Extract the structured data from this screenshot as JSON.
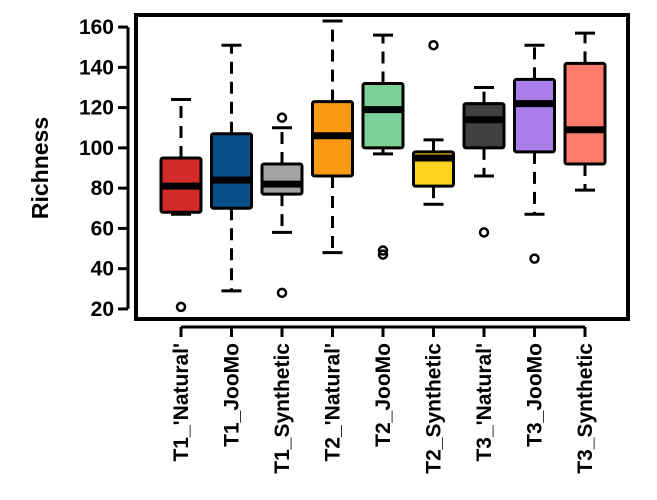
{
  "chart_data": {
    "type": "boxplot",
    "title": "",
    "xlabel": "",
    "ylabel": "Richness",
    "ylim": [
      15,
      166
    ],
    "yticks": [
      20,
      40,
      60,
      80,
      100,
      120,
      140,
      160
    ],
    "grid": false,
    "legend": "none",
    "categories": [
      "T1_'Natural'",
      "T1_JooMo",
      "T1_Synthetic",
      "T2_'Natural'",
      "T2_JooMo",
      "T2_Synthetic",
      "T3_'Natural'",
      "T3_JooMo",
      "T3_Synthetic"
    ],
    "boxes": [
      {
        "category": "T1_'Natural'",
        "color": "#d42a2a",
        "whisker_low": 67,
        "q1": 68,
        "median": 81,
        "q3": 95,
        "whisker_high": 124,
        "outliers": [
          21
        ]
      },
      {
        "category": "T1_JooMo",
        "color": "#0b4f8a",
        "whisker_low": 29,
        "q1": 70,
        "median": 84,
        "q3": 107,
        "whisker_high": 151,
        "outliers": []
      },
      {
        "category": "T1_Synthetic",
        "color": "#a3a3a3",
        "whisker_low": 58,
        "q1": 77,
        "median": 82,
        "q3": 92,
        "whisker_high": 110,
        "outliers": [
          115,
          28
        ]
      },
      {
        "category": "T2_'Natural'",
        "color": "#ff9a14",
        "whisker_low": 48,
        "q1": 86,
        "median": 106,
        "q3": 123,
        "whisker_high": 163,
        "outliers": []
      },
      {
        "category": "T2_JooMo",
        "color": "#7ccf99",
        "whisker_low": 97,
        "q1": 100,
        "median": 119,
        "q3": 132,
        "whisker_high": 156,
        "outliers": [
          49,
          47
        ]
      },
      {
        "category": "T2_Synthetic",
        "color": "#ffd21e",
        "whisker_low": 72,
        "q1": 81,
        "median": 95,
        "q3": 98,
        "whisker_high": 104,
        "outliers": [
          151
        ]
      },
      {
        "category": "T3_'Natural'",
        "color": "#404040",
        "whisker_low": 86,
        "q1": 100,
        "median": 114,
        "q3": 122,
        "whisker_high": 130,
        "outliers": [
          58
        ]
      },
      {
        "category": "T3_JooMo",
        "color": "#a97ee8",
        "whisker_low": 67,
        "q1": 98,
        "median": 122,
        "q3": 134,
        "whisker_high": 151,
        "outliers": [
          45
        ]
      },
      {
        "category": "T3_Synthetic",
        "color": "#fd7b6c",
        "whisker_low": 79,
        "q1": 92,
        "median": 109,
        "q3": 142,
        "whisker_high": 157,
        "outliers": []
      }
    ]
  }
}
